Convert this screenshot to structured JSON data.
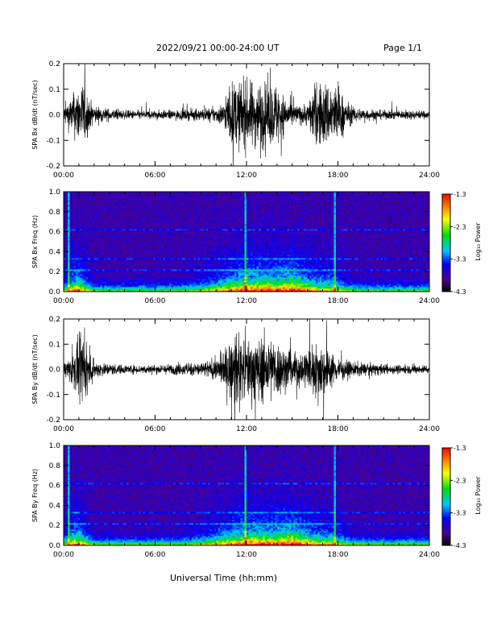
{
  "header": {
    "title": "2022/09/21  00:00-24:00 UT",
    "page": "Page 1/1"
  },
  "xaxis": {
    "label": "Universal Time (hh:mm)",
    "ticks": [
      "00:00",
      "06:00",
      "12:00",
      "18:00",
      "24:00"
    ]
  },
  "colors": {
    "spectrogram_background": "#2b0a3d",
    "colorbar_stops": [
      "#000000",
      "#5500aa",
      "#0000ff",
      "#00c8ff",
      "#00e000",
      "#ffff00",
      "#ff8000",
      "#ff0000"
    ]
  },
  "chart_data": [
    {
      "type": "line",
      "panel": "bx-timeseries",
      "ylabel": "SPA Bx dB/dt (nT/sec)",
      "ylim": [
        -0.2,
        0.2
      ],
      "yticks": [
        "0.2",
        "0.1",
        "0.0",
        "-0.1",
        "-0.2"
      ],
      "xlim_hours": [
        0,
        24
      ],
      "envelope": {
        "x_hours": [
          0,
          0.5,
          1.0,
          1.3,
          1.7,
          2,
          3,
          4,
          5,
          6,
          7,
          8,
          9,
          10,
          10.5,
          11,
          11.5,
          12,
          12.5,
          13,
          13.5,
          14,
          14.5,
          15,
          15.5,
          16,
          16.5,
          17,
          17.5,
          18,
          18.5,
          19,
          20,
          21,
          22,
          23,
          24
        ],
        "amplitude": [
          0.06,
          0.12,
          0.2,
          0.22,
          0.1,
          0.06,
          0.04,
          0.03,
          0.03,
          0.03,
          0.03,
          0.035,
          0.04,
          0.05,
          0.08,
          0.22,
          0.22,
          0.22,
          0.22,
          0.22,
          0.2,
          0.22,
          0.12,
          0.08,
          0.06,
          0.08,
          0.2,
          0.22,
          0.22,
          0.2,
          0.1,
          0.05,
          0.04,
          0.03,
          0.03,
          0.03,
          0.025
        ]
      }
    },
    {
      "type": "heatmap",
      "panel": "bx-spectrogram",
      "ylabel": "SPA Bx Freq (Hz)",
      "ylim": [
        0,
        1.0
      ],
      "yticks": [
        "1.0",
        "0.8",
        "0.6",
        "0.4",
        "0.2",
        "0.0"
      ],
      "xlim_hours": [
        0,
        24
      ],
      "colorbar": {
        "label": "Log₁₀ Power",
        "min": -4.3,
        "max": -1.3,
        "ticks": [
          "-1.3",
          "-2.3",
          "-3.3",
          "-4.3"
        ]
      },
      "features": {
        "horizontal_bands_hz": [
          0.33,
          0.62,
          0.22
        ],
        "vertical_lines_hours": [
          0.3,
          11.9,
          17.8
        ]
      }
    },
    {
      "type": "line",
      "panel": "by-timeseries",
      "ylabel": "SPA By dB/dt (nT/sec)",
      "ylim": [
        -0.2,
        0.2
      ],
      "yticks": [
        "0.2",
        "0.1",
        "0.0",
        "-0.1",
        "-0.2"
      ],
      "xlim_hours": [
        0,
        24
      ],
      "envelope": {
        "x_hours": [
          0,
          0.5,
          1.0,
          1.3,
          1.7,
          2,
          3,
          4,
          5,
          6,
          7,
          8,
          9,
          10,
          10.5,
          11,
          11.5,
          12,
          12.5,
          13,
          13.5,
          14,
          14.5,
          15,
          15.5,
          16,
          16.5,
          17,
          17.5,
          18,
          18.5,
          19,
          20,
          21,
          22,
          23,
          24
        ],
        "amplitude": [
          0.05,
          0.1,
          0.2,
          0.22,
          0.1,
          0.06,
          0.04,
          0.03,
          0.03,
          0.03,
          0.035,
          0.04,
          0.05,
          0.07,
          0.12,
          0.22,
          0.22,
          0.22,
          0.22,
          0.22,
          0.22,
          0.2,
          0.15,
          0.12,
          0.12,
          0.15,
          0.18,
          0.2,
          0.12,
          0.08,
          0.06,
          0.05,
          0.04,
          0.035,
          0.03,
          0.03,
          0.03
        ]
      }
    },
    {
      "type": "heatmap",
      "panel": "by-spectrogram",
      "ylabel": "SPA By Freq (Hz)",
      "ylim": [
        0,
        1.0
      ],
      "yticks": [
        "1.0",
        "0.8",
        "0.6",
        "0.4",
        "0.2",
        "0.0"
      ],
      "xlim_hours": [
        0,
        24
      ],
      "colorbar": {
        "label": "Log₁₀ Power",
        "min": -4.3,
        "max": -1.3,
        "ticks": [
          "-1.3",
          "-2.3",
          "-3.3",
          "-4.3"
        ]
      },
      "features": {
        "horizontal_bands_hz": [
          0.33,
          0.62,
          0.22
        ],
        "vertical_lines_hours": [
          0.3,
          11.9,
          17.8
        ]
      }
    }
  ]
}
